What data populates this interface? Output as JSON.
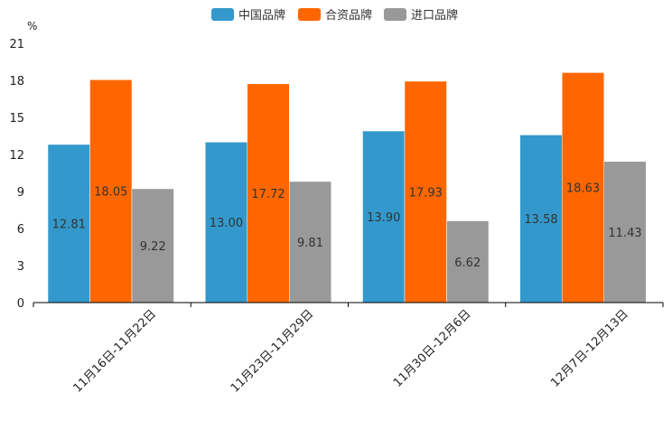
{
  "chart_data": {
    "type": "bar",
    "unit_label": "%",
    "categories": [
      "11月16日-11月22日",
      "11月23日-11月29日",
      "11月30日-12月6日",
      "12月7日-12月13日"
    ],
    "series": [
      {
        "name": "中国品牌",
        "color": "#3399cc",
        "values": [
          12.81,
          13.0,
          13.9,
          13.58
        ]
      },
      {
        "name": "合资品牌",
        "color": "#ff6600",
        "values": [
          18.05,
          17.72,
          17.93,
          18.63
        ]
      },
      {
        "name": "进口品牌",
        "color": "#999999",
        "values": [
          9.22,
          9.81,
          6.62,
          11.43
        ]
      }
    ],
    "ylim": [
      0,
      21
    ],
    "yticks": [
      0,
      3,
      6,
      9,
      12,
      15,
      18,
      21
    ],
    "legend_position": "top-center"
  }
}
